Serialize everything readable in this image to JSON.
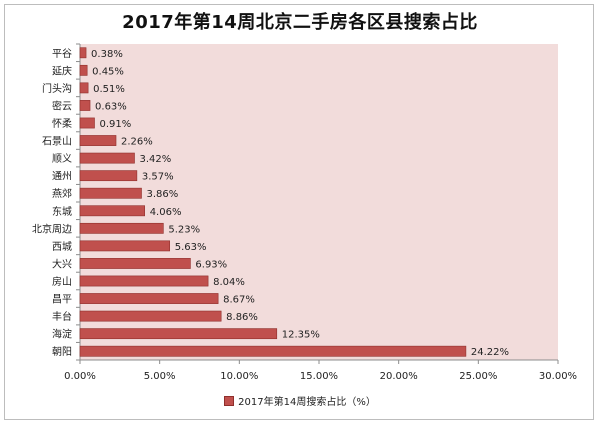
{
  "colors": {
    "plot_background": "#f2dcdb",
    "bar_fill": "#c0504d",
    "bar_stroke": "#8f2f2c"
  },
  "chart_data": {
    "type": "bar",
    "orientation": "horizontal",
    "title": "2017年第14周北京二手房各区县搜索占比",
    "categories": [
      "平谷",
      "延庆",
      "门头沟",
      "密云",
      "怀柔",
      "石景山",
      "顺义",
      "通州",
      "燕郊",
      "东城",
      "北京周边",
      "西城",
      "大兴",
      "房山",
      "昌平",
      "丰台",
      "海淀",
      "朝阳"
    ],
    "values": [
      0.38,
      0.45,
      0.51,
      0.63,
      0.91,
      2.26,
      3.42,
      3.57,
      3.86,
      4.06,
      5.23,
      5.63,
      6.93,
      8.04,
      8.67,
      8.86,
      12.35,
      24.22
    ],
    "value_labels": [
      "0.38%",
      "0.45%",
      "0.51%",
      "0.63%",
      "0.91%",
      "2.26%",
      "3.42%",
      "3.57%",
      "3.86%",
      "4.06%",
      "5.23%",
      "5.63%",
      "6.93%",
      "8.04%",
      "8.67%",
      "8.86%",
      "12.35%",
      "24.22%"
    ],
    "xlim": [
      0,
      30
    ],
    "x_ticks": [
      0,
      5,
      10,
      15,
      20,
      25,
      30
    ],
    "x_tick_labels": [
      "0.00%",
      "5.00%",
      "10.00%",
      "15.00%",
      "20.00%",
      "25.00%",
      "30.00%"
    ],
    "xlabel": "",
    "ylabel": "",
    "grid": false,
    "legend": {
      "position": "bottom",
      "label": "2017年第14周搜索占比（%）"
    }
  }
}
